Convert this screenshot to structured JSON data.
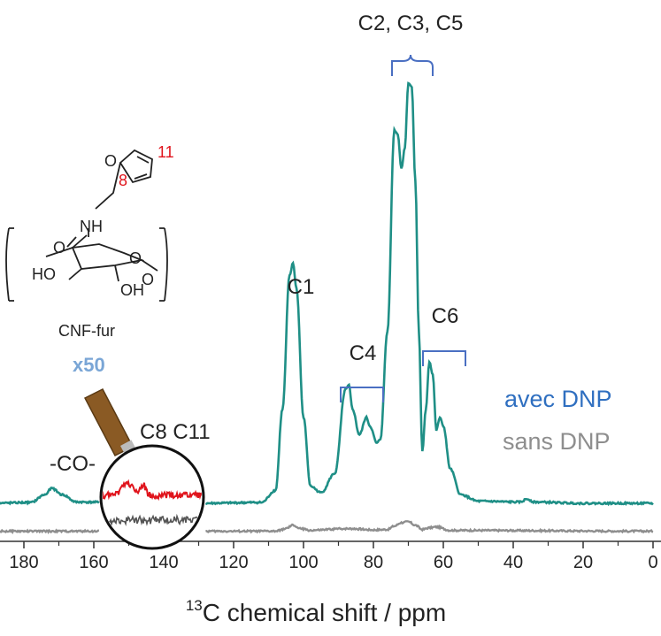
{
  "chart_data": {
    "type": "line",
    "title": "",
    "xlabel": "chemical shift / ppm",
    "xlabel_isotope": "13",
    "xlabel_element": "C",
    "xlim": [
      190,
      0
    ],
    "x_reversed": true,
    "x_ticks": [
      "180",
      "160",
      "140",
      "120",
      "100",
      "80",
      "60",
      "40",
      "20",
      "0"
    ],
    "ylabel": "",
    "grid": false,
    "legend_position": "right",
    "series": [
      {
        "name": "avec DNP",
        "color": "#1f8f86",
        "baseline": 0.0,
        "points": [
          [
            190,
            0
          ],
          [
            178,
            0.002
          ],
          [
            174,
            0.02
          ],
          [
            172,
            0.035
          ],
          [
            169,
            0.02
          ],
          [
            165,
            0.003
          ],
          [
            150,
            0.002
          ],
          [
            130,
            0
          ],
          [
            112,
            0.002
          ],
          [
            108,
            0.03
          ],
          [
            106,
            0.22
          ],
          [
            104,
            0.53
          ],
          [
            103,
            0.56
          ],
          [
            102,
            0.5
          ],
          [
            100,
            0.2
          ],
          [
            98,
            0.04
          ],
          [
            95,
            0.025
          ],
          [
            91,
            0.07
          ],
          [
            88,
            0.265
          ],
          [
            87,
            0.275
          ],
          [
            86,
            0.22
          ],
          [
            84,
            0.16
          ],
          [
            82,
            0.2
          ],
          [
            81,
            0.18
          ],
          [
            79,
            0.14
          ],
          [
            78,
            0.15
          ],
          [
            76,
            0.4
          ],
          [
            74,
            0.87
          ],
          [
            73,
            0.86
          ],
          [
            72,
            0.78
          ],
          [
            71,
            0.83
          ],
          [
            70,
            0.98
          ],
          [
            69,
            0.97
          ],
          [
            68,
            0.75
          ],
          [
            67,
            0.4
          ],
          [
            66,
            0.12
          ],
          [
            65,
            0.22
          ],
          [
            64,
            0.33
          ],
          [
            63,
            0.3
          ],
          [
            62,
            0.17
          ],
          [
            61,
            0.2
          ],
          [
            60,
            0.18
          ],
          [
            58,
            0.08
          ],
          [
            55,
            0.02
          ],
          [
            50,
            0.005
          ],
          [
            38,
            0.003
          ],
          [
            36,
            0.01
          ],
          [
            34,
            0.003
          ],
          [
            20,
            0
          ],
          [
            0,
            0
          ]
        ]
      },
      {
        "name": "sans DNP",
        "color": "#8e8e8e",
        "baseline": -0.065,
        "points": [
          [
            190,
            0
          ],
          [
            130,
            0
          ],
          [
            108,
            0
          ],
          [
            105,
            0.006
          ],
          [
            103,
            0.014
          ],
          [
            101,
            0.006
          ],
          [
            98,
            0.002
          ],
          [
            88,
            0.006
          ],
          [
            86,
            0.006
          ],
          [
            80,
            0.003
          ],
          [
            76,
            0.004
          ],
          [
            74,
            0.012
          ],
          [
            72,
            0.02
          ],
          [
            70,
            0.022
          ],
          [
            68,
            0.014
          ],
          [
            66,
            0.004
          ],
          [
            64,
            0.008
          ],
          [
            62,
            0.01
          ],
          [
            58,
            0.002
          ],
          [
            0,
            0
          ]
        ]
      }
    ],
    "annotations": [
      {
        "text": "-CO-",
        "x": 172
      },
      {
        "text": "C1",
        "x": 103
      },
      {
        "text": "C4",
        "x": 84,
        "bracket": [
          90,
          78
        ]
      },
      {
        "text": "C2, C3, C5",
        "x": 70,
        "bracket": [
          76,
          63
        ]
      },
      {
        "text": "C6",
        "x": 60,
        "bracket": [
          66,
          55
        ]
      },
      {
        "text": "C8 C11",
        "x": 148
      }
    ],
    "inset": {
      "magnification_label": "x50",
      "peaks_label": "C8 C11",
      "signal_color": "#e0141c",
      "noise_color": "#555555"
    },
    "molecule": {
      "caption": "CNF-fur",
      "atom_labels": [
        "O",
        "NH",
        "O",
        "HO",
        "O",
        "OH",
        "O"
      ],
      "position_labels": [
        "8",
        "11"
      ],
      "number_color": "#e0141c"
    }
  },
  "colors": {
    "bracket": "#4a6fc2",
    "legend_dnp": "#2f6fc0",
    "legend_nodnp": "#8e8e8e",
    "magnifier_handle": "#8a5a24",
    "magnifier_label": "#7aa6d6"
  }
}
